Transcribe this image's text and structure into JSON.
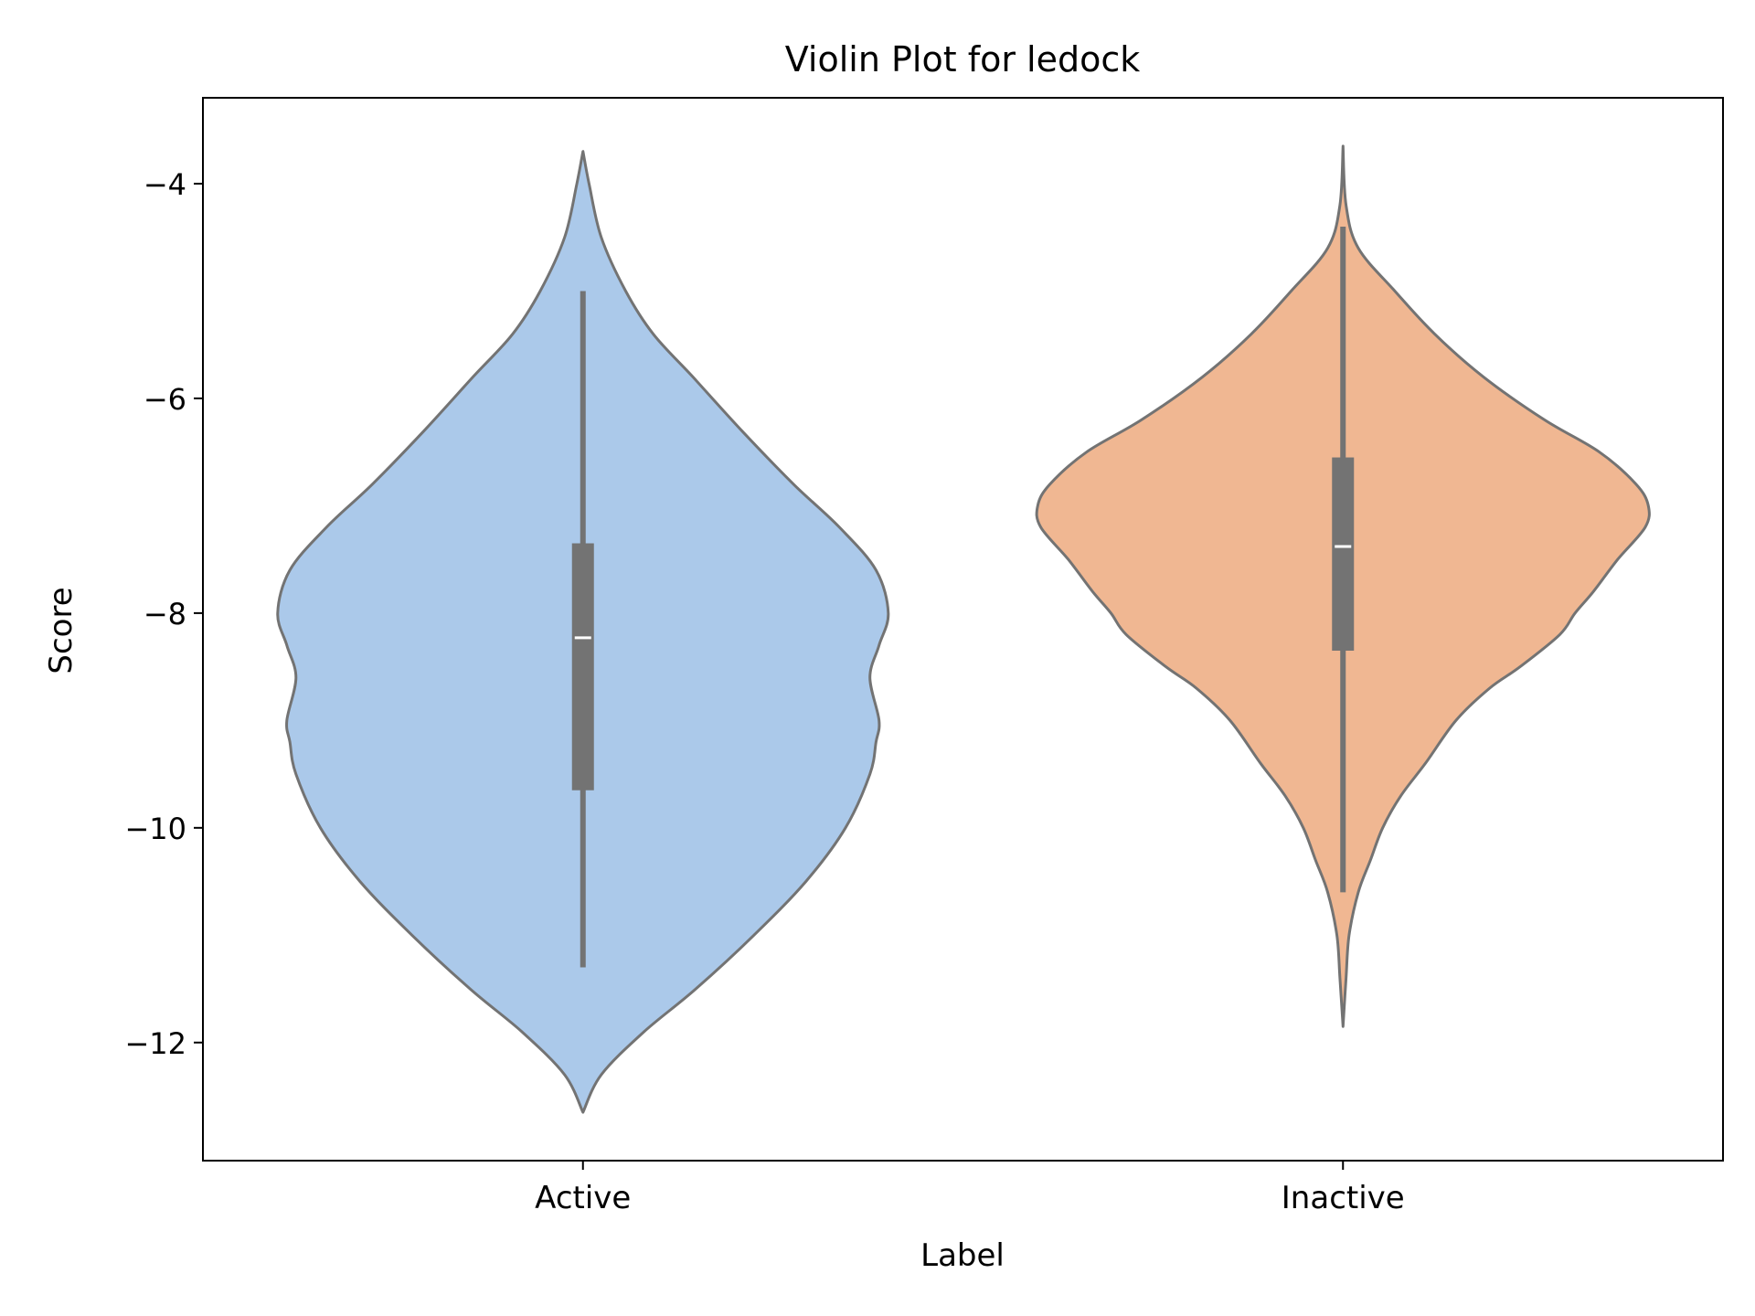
{
  "chart_data": {
    "type": "violin",
    "title": "Violin Plot for ledock",
    "xlabel": "Label",
    "ylabel": "Score",
    "ylim": [
      -13.1,
      -3.2
    ],
    "yticks": [
      -4,
      -6,
      -8,
      -10,
      -12
    ],
    "ytick_labels": [
      "−4",
      "−6",
      "−8",
      "−10",
      "−12"
    ],
    "categories": [
      "Active",
      "Inactive"
    ],
    "grid": false,
    "legend": "none",
    "violins": [
      {
        "category": "Active",
        "color": "#abc9ea",
        "edge_color": "#737373",
        "min": -12.65,
        "max": -3.7,
        "whisker_low": -11.3,
        "whisker_high": -5.0,
        "q1": -9.65,
        "q3": -7.35,
        "median": -8.23,
        "density": [
          [
            -12.65,
            0.0
          ],
          [
            -12.3,
            0.06
          ],
          [
            -11.9,
            0.2
          ],
          [
            -11.5,
            0.37
          ],
          [
            -11.0,
            0.56
          ],
          [
            -10.5,
            0.73
          ],
          [
            -10.0,
            0.86
          ],
          [
            -9.5,
            0.94
          ],
          [
            -9.2,
            0.96
          ],
          [
            -9.0,
            0.97
          ],
          [
            -8.6,
            0.94
          ],
          [
            -8.3,
            0.97
          ],
          [
            -8.0,
            1.0
          ],
          [
            -7.6,
            0.96
          ],
          [
            -7.2,
            0.84
          ],
          [
            -6.8,
            0.69
          ],
          [
            -6.3,
            0.52
          ],
          [
            -5.8,
            0.36
          ],
          [
            -5.4,
            0.23
          ],
          [
            -5.0,
            0.14
          ],
          [
            -4.5,
            0.06
          ],
          [
            -4.0,
            0.02
          ],
          [
            -3.7,
            0.0
          ]
        ]
      },
      {
        "category": "Inactive",
        "color": "#f0b792",
        "edge_color": "#737373",
        "min": -11.85,
        "max": -3.65,
        "whisker_low": -10.6,
        "whisker_high": -4.4,
        "q1": -8.35,
        "q3": -6.55,
        "median": -7.38,
        "density": [
          [
            -11.85,
            0.0
          ],
          [
            -11.4,
            0.01
          ],
          [
            -11.0,
            0.02
          ],
          [
            -10.6,
            0.05
          ],
          [
            -10.3,
            0.09
          ],
          [
            -10.0,
            0.13
          ],
          [
            -9.7,
            0.19
          ],
          [
            -9.4,
            0.27
          ],
          [
            -9.0,
            0.37
          ],
          [
            -8.7,
            0.48
          ],
          [
            -8.5,
            0.58
          ],
          [
            -8.2,
            0.71
          ],
          [
            -8.0,
            0.76
          ],
          [
            -7.8,
            0.82
          ],
          [
            -7.5,
            0.9
          ],
          [
            -7.2,
            0.99
          ],
          [
            -7.0,
            1.0
          ],
          [
            -6.8,
            0.96
          ],
          [
            -6.5,
            0.84
          ],
          [
            -6.2,
            0.66
          ],
          [
            -5.8,
            0.46
          ],
          [
            -5.4,
            0.3
          ],
          [
            -5.0,
            0.17
          ],
          [
            -4.6,
            0.05
          ],
          [
            -4.2,
            0.01
          ],
          [
            -3.65,
            0.0
          ]
        ]
      }
    ]
  }
}
